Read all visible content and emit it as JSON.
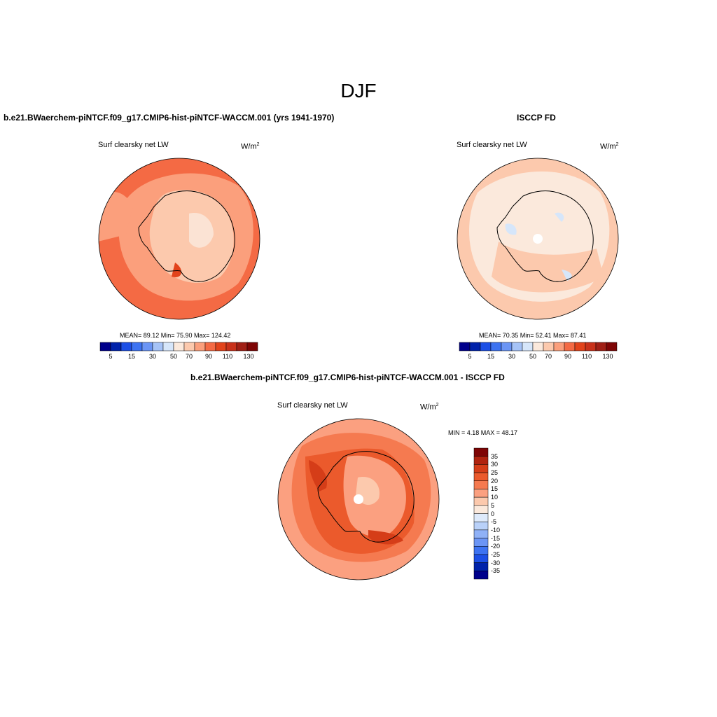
{
  "page_title": "DJF",
  "colors": {
    "abs_palette": [
      "#00008b",
      "#0022aa",
      "#1c4fe6",
      "#3d73f2",
      "#6b95f5",
      "#a6c3f7",
      "#d6e6fa",
      "#fbe9dc",
      "#fcc9ad",
      "#fb9f7c",
      "#f46a44",
      "#e2431b",
      "#c8311a",
      "#a01f15",
      "#7e0505"
    ],
    "diff_palette": [
      "#00008b",
      "#0022aa",
      "#1c4fe6",
      "#3d73f2",
      "#6b95f5",
      "#8fb1f7",
      "#b9d1f9",
      "#deeafb",
      "#fbe9dc",
      "#fcc9ad",
      "#fba080",
      "#f57a50",
      "#eb5a2c",
      "#d53d18",
      "#b0230f",
      "#7e0505"
    ]
  },
  "panels": [
    {
      "case_title": "b.e21.BWaerchem-piNTCF.f09_g17.CMIP6-hist-piNTCF-WACCM.001 (yrs 1941-1970)",
      "variable": "Surf clearsky net LW",
      "units": "W/m",
      "units_exp": "2",
      "stats_text": "MEAN=  89.12  Min=  75.90  Max= 124.42",
      "colorbar_ticks": [
        "5",
        "15",
        "30",
        "50",
        "70",
        "90",
        "110",
        "130"
      ]
    },
    {
      "case_title": "ISCCP FD",
      "variable": "Surf clearsky net LW",
      "units": "W/m",
      "units_exp": "2",
      "stats_text": "MEAN=  70.35  Min=  52.41  Max=  87.41",
      "colorbar_ticks": [
        "5",
        "15",
        "30",
        "50",
        "70",
        "90",
        "110",
        "130"
      ]
    },
    {
      "case_title": "b.e21.BWaerchem-piNTCF.f09_g17.CMIP6-hist-piNTCF-WACCM.001 - ISCCP FD",
      "variable": "Surf clearsky net LW",
      "units": "W/m",
      "units_exp": "2",
      "minmax_text": "MIN =   4.18 MAX =  48.17",
      "colorbar_ticks": [
        "35",
        "30",
        "25",
        "20",
        "15",
        "10",
        "5",
        "0",
        "-5",
        "-10",
        "-15",
        "-20",
        "-25",
        "-30",
        "-35"
      ]
    }
  ]
}
